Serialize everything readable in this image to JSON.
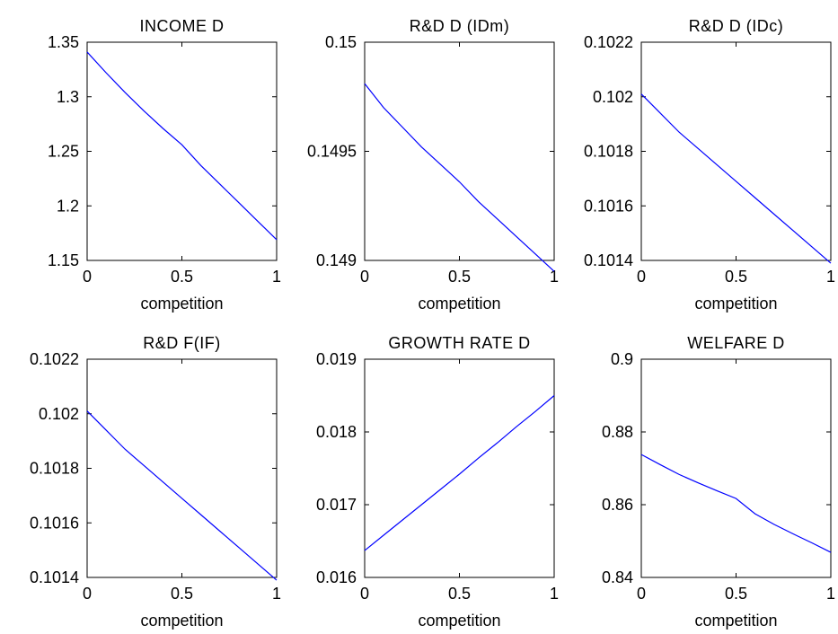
{
  "figure": {
    "background": "#ffffff",
    "line_color": "#0000ff"
  },
  "chart_data": [
    {
      "type": "line",
      "title": "INCOME D",
      "xlabel": "competition",
      "ylabel": "",
      "xlim": [
        0,
        1
      ],
      "ylim": [
        1.15,
        1.35
      ],
      "xticks": [
        "0",
        "0.5",
        "1"
      ],
      "yticks": [
        "1.15",
        "1.2",
        "1.25",
        "1.3",
        "1.35"
      ],
      "grid": false,
      "series": [
        {
          "x": [
            0,
            0.1,
            0.2,
            0.3,
            0.4,
            0.5,
            0.6,
            0.7,
            0.8,
            0.9,
            1.0
          ],
          "y": [
            1.341,
            1.322,
            1.304,
            1.287,
            1.271,
            1.256,
            1.237,
            1.22,
            1.203,
            1.186,
            1.169
          ]
        }
      ]
    },
    {
      "type": "line",
      "title": "R&D D (IDm)",
      "xlabel": "competition",
      "ylabel": "",
      "xlim": [
        0,
        1
      ],
      "ylim": [
        0.149,
        0.15
      ],
      "xticks": [
        "0",
        "0.5",
        "1"
      ],
      "yticks": [
        "0.149",
        "0.1495",
        "0.15"
      ],
      "grid": false,
      "series": [
        {
          "x": [
            0,
            0.1,
            0.2,
            0.3,
            0.4,
            0.5,
            0.6,
            0.7,
            0.8,
            0.9,
            1.0
          ],
          "y": [
            0.14981,
            0.1497,
            0.14961,
            0.14952,
            0.14944,
            0.14936,
            0.14927,
            0.14919,
            0.14911,
            0.14903,
            0.14895
          ]
        }
      ]
    },
    {
      "type": "line",
      "title": "R&D D (IDc)",
      "xlabel": "competition",
      "ylabel": "",
      "xlim": [
        0,
        1
      ],
      "ylim": [
        0.1014,
        0.1022
      ],
      "xticks": [
        "0",
        "0.5",
        "1"
      ],
      "yticks": [
        "0.1014",
        "0.1016",
        "0.1018",
        "0.102",
        "0.1022"
      ],
      "grid": false,
      "series": [
        {
          "x": [
            0,
            0.1,
            0.2,
            0.3,
            0.4,
            0.5,
            0.6,
            0.7,
            0.8,
            0.9,
            1.0
          ],
          "y": [
            0.10201,
            0.10194,
            0.10187,
            0.10181,
            0.10175,
            0.10169,
            0.10163,
            0.10157,
            0.10151,
            0.10145,
            0.10139
          ]
        }
      ]
    },
    {
      "type": "line",
      "title": "R&D F(IF)",
      "xlabel": "competition",
      "ylabel": "",
      "xlim": [
        0,
        1
      ],
      "ylim": [
        0.1014,
        0.1022
      ],
      "xticks": [
        "0",
        "0.5",
        "1"
      ],
      "yticks": [
        "0.1014",
        "0.1016",
        "0.1018",
        "0.102",
        "0.1022"
      ],
      "grid": false,
      "series": [
        {
          "x": [
            0,
            0.1,
            0.2,
            0.3,
            0.4,
            0.5,
            0.6,
            0.7,
            0.8,
            0.9,
            1.0
          ],
          "y": [
            0.10201,
            0.10194,
            0.10187,
            0.10181,
            0.10175,
            0.10169,
            0.10163,
            0.10157,
            0.10151,
            0.10145,
            0.10139
          ]
        }
      ]
    },
    {
      "type": "line",
      "title": "GROWTH RATE D",
      "xlabel": "competition",
      "ylabel": "",
      "xlim": [
        0,
        1
      ],
      "ylim": [
        0.016,
        0.019
      ],
      "xticks": [
        "0",
        "0.5",
        "1"
      ],
      "yticks": [
        "0.016",
        "0.017",
        "0.018",
        "0.019"
      ],
      "grid": false,
      "series": [
        {
          "x": [
            0,
            0.1,
            0.2,
            0.3,
            0.4,
            0.5,
            0.6,
            0.7,
            0.8,
            0.9,
            1.0
          ],
          "y": [
            0.01637,
            0.01658,
            0.01679,
            0.017,
            0.01721,
            0.01742,
            0.01764,
            0.01785,
            0.01807,
            0.01828,
            0.0185
          ]
        }
      ]
    },
    {
      "type": "line",
      "title": "WELFARE D",
      "xlabel": "competition",
      "ylabel": "",
      "xlim": [
        0,
        1
      ],
      "ylim": [
        0.84,
        0.9
      ],
      "xticks": [
        "0",
        "0.5",
        "1"
      ],
      "yticks": [
        "0.84",
        "0.86",
        "0.88",
        "0.9"
      ],
      "grid": false,
      "series": [
        {
          "x": [
            0,
            0.1,
            0.2,
            0.3,
            0.4,
            0.5,
            0.6,
            0.7,
            0.8,
            0.9,
            1.0
          ],
          "y": [
            0.8738,
            0.871,
            0.8683,
            0.866,
            0.8638,
            0.8617,
            0.8575,
            0.8546,
            0.852,
            0.8495,
            0.8469
          ]
        }
      ]
    }
  ]
}
